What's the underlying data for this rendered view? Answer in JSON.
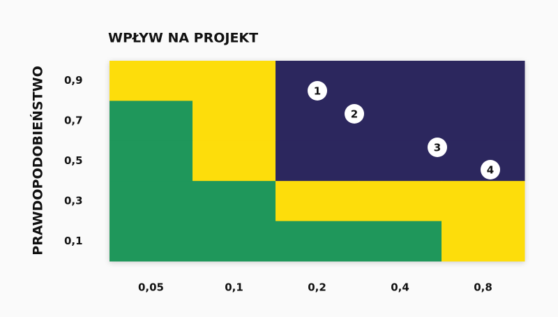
{
  "chart_data": {
    "type": "risk-matrix",
    "title": "WPŁYW NA PROJEKT",
    "y_label": "PRAWDOPODOBIEŃSTWO",
    "categories": [
      "0,05",
      "0,1",
      "0,2",
      "0,4",
      "0,8"
    ],
    "y_categories": [
      "0,9",
      "0,7",
      "0,5",
      "0,3",
      "0,1"
    ],
    "cells": [
      [
        "#fddd0b",
        "#fddd0b",
        "#2c275e",
        "#2c275e",
        "#2c275e"
      ],
      [
        "#1f975b",
        "#fddd0b",
        "#2c275e",
        "#2c275e",
        "#2c275e"
      ],
      [
        "#1f975b",
        "#fddd0b",
        "#2c275e",
        "#2c275e",
        "#2c275e"
      ],
      [
        "#1f975b",
        "#1f975b",
        "#fddd0b",
        "#fddd0b",
        "#fddd0b"
      ],
      [
        "#1f975b",
        "#1f975b",
        "#1f975b",
        "#1f975b",
        "#fddd0b"
      ]
    ],
    "points": [
      "1",
      "2",
      "3",
      "4"
    ]
  }
}
